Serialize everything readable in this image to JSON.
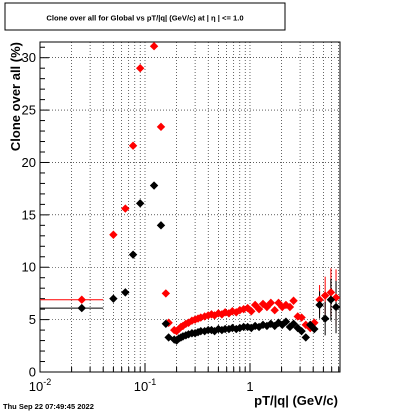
{
  "title": "Clone  over all for Global vs pT/|q| (GeV/c) at |  η  | <= 1.0",
  "timestamp": "Thu Sep 22 07:49:45 2022",
  "chart_data": {
    "type": "scatter",
    "title": "Clone  over all for Global vs pT/|q| (GeV/c) at |  η  | <= 1.0",
    "xlabel": "pT/|q| (GeV/c)",
    "ylabel": "Clone  over all (%)",
    "x_scale": "log",
    "xlim": [
      0.01,
      7.2
    ],
    "ylim": [
      0,
      31.5
    ],
    "x_ticks": [
      {
        "value": 0.01,
        "label": "10^-2"
      },
      {
        "value": 0.1,
        "label": "10^-1"
      },
      {
        "value": 1,
        "label": "1"
      }
    ],
    "y_ticks": [
      0,
      5,
      10,
      15,
      20,
      25,
      30
    ],
    "grid": true,
    "series": [
      {
        "color": "#ff0000",
        "marker": "diamond",
        "points": [
          {
            "x": 0.025,
            "y": 6.9,
            "xerr": [
              0.01,
              0.04
            ]
          },
          {
            "x": 0.05,
            "y": 13.1
          },
          {
            "x": 0.065,
            "y": 15.6
          },
          {
            "x": 0.077,
            "y": 21.6
          },
          {
            "x": 0.09,
            "y": 29.0
          },
          {
            "x": 0.122,
            "y": 31.1
          },
          {
            "x": 0.142,
            "y": 23.4
          },
          {
            "x": 0.158,
            "y": 7.5
          },
          {
            "x": 0.168,
            "y": 4.7
          },
          {
            "x": 0.19,
            "y": 4.0
          },
          {
            "x": 0.2,
            "y": 3.9
          },
          {
            "x": 0.21,
            "y": 4.1
          },
          {
            "x": 0.22,
            "y": 4.3
          },
          {
            "x": 0.23,
            "y": 4.4
          },
          {
            "x": 0.245,
            "y": 4.6
          },
          {
            "x": 0.26,
            "y": 4.7
          },
          {
            "x": 0.28,
            "y": 4.9
          },
          {
            "x": 0.3,
            "y": 5.0
          },
          {
            "x": 0.32,
            "y": 5.1
          },
          {
            "x": 0.34,
            "y": 5.2
          },
          {
            "x": 0.37,
            "y": 5.3
          },
          {
            "x": 0.4,
            "y": 5.4
          },
          {
            "x": 0.43,
            "y": 5.5
          },
          {
            "x": 0.46,
            "y": 5.4
          },
          {
            "x": 0.5,
            "y": 5.6
          },
          {
            "x": 0.54,
            "y": 5.5
          },
          {
            "x": 0.58,
            "y": 5.7
          },
          {
            "x": 0.63,
            "y": 5.6
          },
          {
            "x": 0.68,
            "y": 5.8
          },
          {
            "x": 0.74,
            "y": 5.7
          },
          {
            "x": 0.8,
            "y": 5.9
          },
          {
            "x": 0.87,
            "y": 6.0
          },
          {
            "x": 0.95,
            "y": 6.1
          },
          {
            "x": 1.03,
            "y": 5.8
          },
          {
            "x": 1.12,
            "y": 6.4
          },
          {
            "x": 1.22,
            "y": 6.0
          },
          {
            "x": 1.33,
            "y": 6.5
          },
          {
            "x": 1.45,
            "y": 6.2
          },
          {
            "x": 1.58,
            "y": 6.6
          },
          {
            "x": 1.72,
            "y": 5.9
          },
          {
            "x": 1.87,
            "y": 6.6
          },
          {
            "x": 2.03,
            "y": 6.2
          },
          {
            "x": 2.2,
            "y": 6.4
          },
          {
            "x": 2.4,
            "y": 6.2
          },
          {
            "x": 2.6,
            "y": 6.8
          },
          {
            "x": 2.85,
            "y": 5.3
          },
          {
            "x": 3.1,
            "y": 5.2
          },
          {
            "x": 3.4,
            "y": 4.5
          },
          {
            "x": 3.75,
            "y": 4.2
          },
          {
            "x": 4.1,
            "y": 4.7
          },
          {
            "x": 4.6,
            "y": 6.9,
            "yerr": 1.4
          },
          {
            "x": 5.2,
            "y": 7.3,
            "yerr": 1.8
          },
          {
            "x": 5.9,
            "y": 7.6,
            "yerr": 2.3
          },
          {
            "x": 6.6,
            "y": 7.1,
            "yerr": 2.7
          }
        ]
      },
      {
        "color": "#000000",
        "marker": "diamond",
        "points": [
          {
            "x": 0.025,
            "y": 6.1,
            "xerr": [
              0.01,
              0.04
            ]
          },
          {
            "x": 0.05,
            "y": 7.0
          },
          {
            "x": 0.065,
            "y": 7.6
          },
          {
            "x": 0.077,
            "y": 11.2
          },
          {
            "x": 0.09,
            "y": 16.1
          },
          {
            "x": 0.122,
            "y": 17.8
          },
          {
            "x": 0.142,
            "y": 14.0
          },
          {
            "x": 0.158,
            "y": 4.6
          },
          {
            "x": 0.168,
            "y": 3.3
          },
          {
            "x": 0.19,
            "y": 3.1
          },
          {
            "x": 0.2,
            "y": 3.0
          },
          {
            "x": 0.21,
            "y": 3.2
          },
          {
            "x": 0.22,
            "y": 3.3
          },
          {
            "x": 0.23,
            "y": 3.4
          },
          {
            "x": 0.245,
            "y": 3.5
          },
          {
            "x": 0.26,
            "y": 3.6
          },
          {
            "x": 0.28,
            "y": 3.7
          },
          {
            "x": 0.3,
            "y": 3.7
          },
          {
            "x": 0.32,
            "y": 3.8
          },
          {
            "x": 0.34,
            "y": 3.9
          },
          {
            "x": 0.37,
            "y": 3.9
          },
          {
            "x": 0.4,
            "y": 4.0
          },
          {
            "x": 0.43,
            "y": 4.0
          },
          {
            "x": 0.46,
            "y": 3.9
          },
          {
            "x": 0.5,
            "y": 4.1
          },
          {
            "x": 0.54,
            "y": 4.0
          },
          {
            "x": 0.58,
            "y": 4.1
          },
          {
            "x": 0.63,
            "y": 4.1
          },
          {
            "x": 0.68,
            "y": 4.2
          },
          {
            "x": 0.74,
            "y": 4.1
          },
          {
            "x": 0.8,
            "y": 4.2
          },
          {
            "x": 0.87,
            "y": 4.3
          },
          {
            "x": 0.95,
            "y": 4.3
          },
          {
            "x": 1.03,
            "y": 4.2
          },
          {
            "x": 1.12,
            "y": 4.4
          },
          {
            "x": 1.22,
            "y": 4.3
          },
          {
            "x": 1.33,
            "y": 4.5
          },
          {
            "x": 1.45,
            "y": 4.4
          },
          {
            "x": 1.58,
            "y": 4.6
          },
          {
            "x": 1.72,
            "y": 4.4
          },
          {
            "x": 1.87,
            "y": 4.7
          },
          {
            "x": 2.03,
            "y": 4.5
          },
          {
            "x": 2.2,
            "y": 4.8
          },
          {
            "x": 2.4,
            "y": 4.3
          },
          {
            "x": 2.6,
            "y": 4.6
          },
          {
            "x": 2.85,
            "y": 4.2
          },
          {
            "x": 3.1,
            "y": 3.9
          },
          {
            "x": 3.4,
            "y": 3.3
          },
          {
            "x": 3.75,
            "y": 4.5
          },
          {
            "x": 4.1,
            "y": 4.1
          },
          {
            "x": 4.6,
            "y": 6.4,
            "yerr": 1.3
          },
          {
            "x": 5.2,
            "y": 5.1,
            "yerr": 1.6
          },
          {
            "x": 5.9,
            "y": 6.9,
            "yerr": 2.0
          },
          {
            "x": 6.6,
            "y": 6.2,
            "yerr": 2.5
          }
        ]
      }
    ]
  }
}
